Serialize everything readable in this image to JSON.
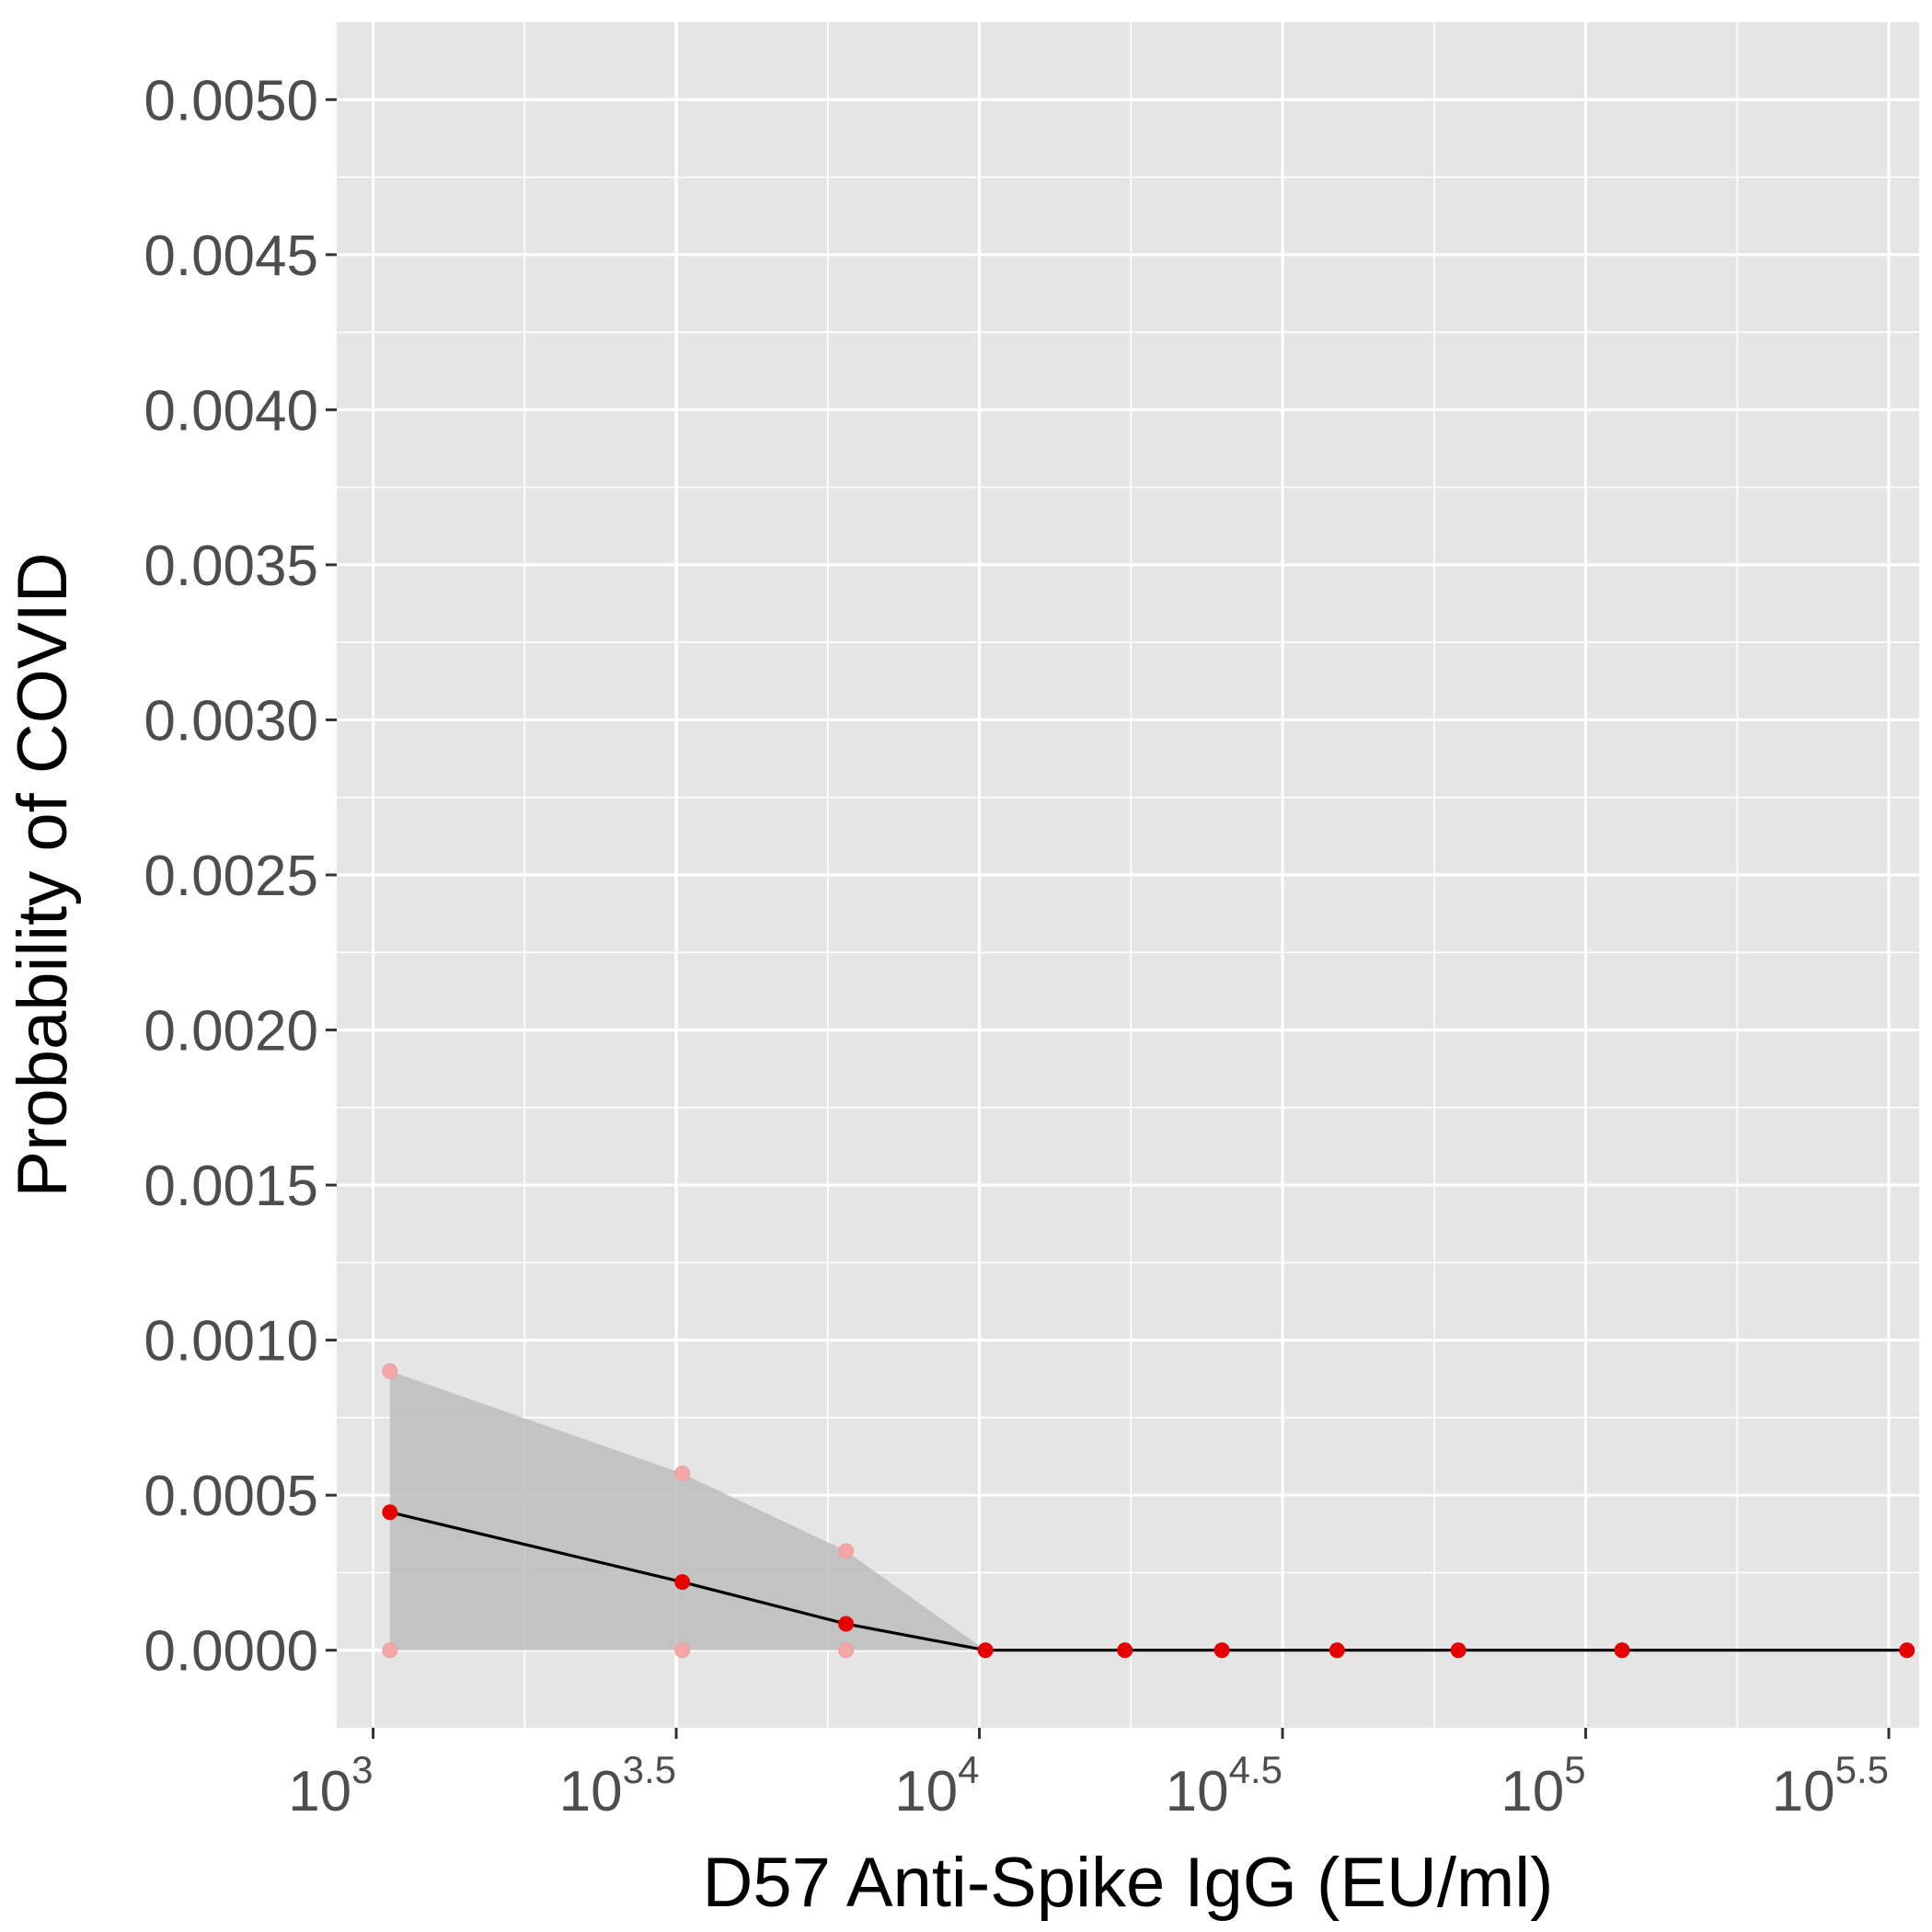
{
  "chart_data": {
    "type": "line",
    "title": "",
    "xlabel": "D57 Anti-Spike IgG (EU/ml)",
    "ylabel": "Probability of COVID",
    "x_scale": "log10",
    "xlim_log10": [
      2.94,
      5.55
    ],
    "ylim": [
      -0.00025,
      0.00525
    ],
    "x_ticks": [
      {
        "exponent": 3,
        "base": "10",
        "sup": "3"
      },
      {
        "exponent": 3.5,
        "base": "10",
        "sup": "3.5"
      },
      {
        "exponent": 4,
        "base": "10",
        "sup": "4"
      },
      {
        "exponent": 4.5,
        "base": "10",
        "sup": "4.5"
      },
      {
        "exponent": 5,
        "base": "10",
        "sup": "5"
      },
      {
        "exponent": 5.5,
        "base": "10",
        "sup": "5.5"
      }
    ],
    "y_ticks": [
      {
        "value": 0.0,
        "label": "0.0000"
      },
      {
        "value": 0.0005,
        "label": "0.0005"
      },
      {
        "value": 0.001,
        "label": "0.0010"
      },
      {
        "value": 0.0015,
        "label": "0.0015"
      },
      {
        "value": 0.002,
        "label": "0.0020"
      },
      {
        "value": 0.0025,
        "label": "0.0025"
      },
      {
        "value": 0.003,
        "label": "0.0030"
      },
      {
        "value": 0.0035,
        "label": "0.0035"
      },
      {
        "value": 0.004,
        "label": "0.0040"
      },
      {
        "value": 0.0045,
        "label": "0.0045"
      },
      {
        "value": 0.005,
        "label": "0.0050"
      }
    ],
    "grid": true,
    "series": [
      {
        "x": [
          1066,
          3236,
          6026,
          10233,
          17378,
          25119,
          38905,
          61660,
          114815,
          338844
        ],
        "y": [
          0.000445,
          0.00022,
          8.5e-05,
          0.0,
          0.0,
          0.0,
          0.0,
          0.0,
          0.0,
          0.0
        ],
        "lower": [
          0.0,
          0.0,
          0.0,
          0.0,
          0.0,
          0.0,
          0.0,
          0.0,
          0.0,
          0.0
        ],
        "upper": [
          0.0009,
          0.00057,
          0.00032,
          0.0,
          0.0,
          0.0,
          0.0,
          0.0,
          0.0,
          0.0
        ]
      }
    ],
    "colors": {
      "panel": "#e5e5e5",
      "grid": "#ffffff",
      "band": "#bdbdbd",
      "line": "#000000",
      "point": "#e60000",
      "ci_point": "#f4a6a6"
    }
  }
}
